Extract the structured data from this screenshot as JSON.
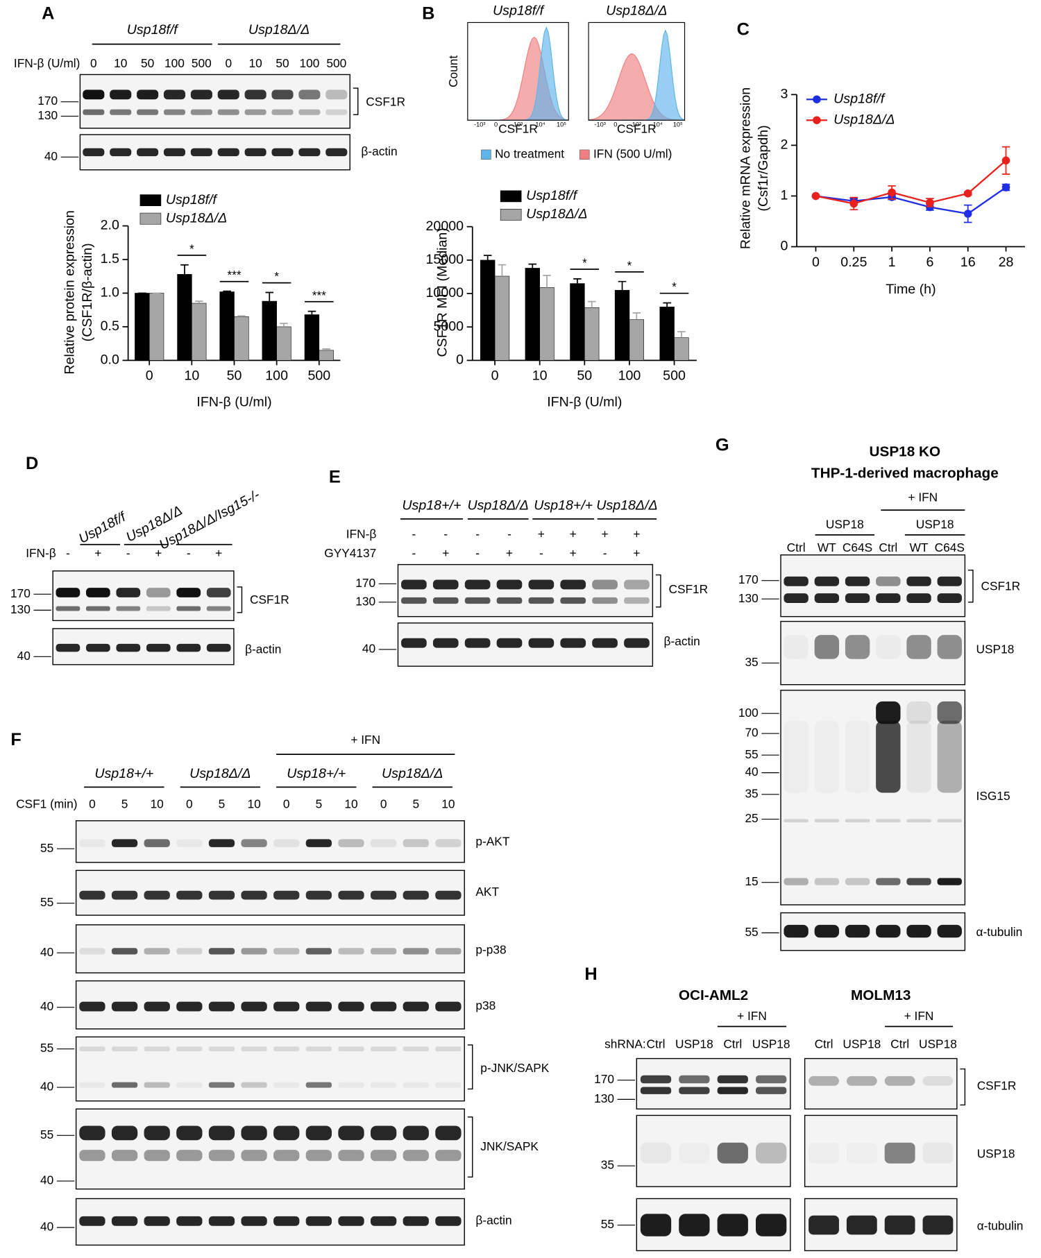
{
  "chart_data": [
    {
      "type": "bar",
      "y_label": [
        "Relative protein expression",
        "(CSF1R/β-actin)"
      ],
      "x_label": "IFN-β (U/ml)",
      "categories": [
        "0",
        "10",
        "50",
        "100",
        "500"
      ],
      "series": [
        {
          "name": "Usp18f/f",
          "color": "#000000",
          "values": [
            1.0,
            1.28,
            1.02,
            0.88,
            0.68
          ],
          "errors": [
            0,
            0.14,
            0.01,
            0.13,
            0.05
          ]
        },
        {
          "name": "Usp18Δ/Δ",
          "color": "#a6a6a6",
          "values": [
            1.0,
            0.85,
            0.65,
            0.5,
            0.15
          ],
          "errors": [
            0,
            0.03,
            0.01,
            0.05,
            0.02
          ]
        }
      ],
      "ylim": [
        0,
        2
      ],
      "yticks": [
        {
          "value": 0,
          "label": "0.0"
        },
        0.5,
        {
          "value": 1,
          "label": "1.0"
        },
        1.5,
        {
          "value": 2,
          "label": "2.0"
        }
      ],
      "annotations": [
        {
          "category": "10",
          "text": "*"
        },
        {
          "category": "50",
          "text": "***"
        },
        {
          "category": "100",
          "text": "*"
        },
        {
          "category": "500",
          "text": "***"
        }
      ]
    },
    {
      "type": "bar",
      "y_label": [
        "CSF1R MFI (Median)"
      ],
      "x_label": "IFN-β (U/ml)",
      "categories": [
        "0",
        "10",
        "50",
        "100",
        "500"
      ],
      "series": [
        {
          "name": "Usp18f/f",
          "color": "#000000",
          "values": [
            15000,
            13800,
            11500,
            10500,
            8000
          ],
          "errors": [
            700,
            600,
            700,
            1300,
            600
          ]
        },
        {
          "name": "Usp18Δ/Δ",
          "color": "#a6a6a6",
          "values": [
            12600,
            10900,
            7900,
            6100,
            3400
          ],
          "errors": [
            1700,
            1800,
            900,
            1000,
            900
          ]
        }
      ],
      "ylim": [
        0,
        20000
      ],
      "yticks": [
        0,
        5000,
        10000,
        15000,
        20000
      ],
      "annotations": [
        {
          "category": "50",
          "text": "*"
        },
        {
          "category": "100",
          "text": "*"
        },
        {
          "category": "500",
          "text": "*"
        }
      ]
    },
    {
      "type": "line",
      "y_label": [
        "Relative mRNA expression",
        "(Csf1r/Gapdh)"
      ],
      "x_label": "Time (h)",
      "categories": [
        "0",
        "0.25",
        "1",
        "6",
        "16",
        "28"
      ],
      "series": [
        {
          "name": "Usp18f/f",
          "color": "#1f2ee0",
          "values": [
            1.0,
            0.9,
            0.98,
            0.78,
            0.65,
            1.17
          ],
          "errors": [
            0,
            0.05,
            0.05,
            0.06,
            0.17,
            0.06
          ]
        },
        {
          "name": "Usp18Δ/Δ",
          "color": "#e8211d",
          "values": [
            1.0,
            0.85,
            1.07,
            0.87,
            1.05,
            1.7
          ],
          "errors": [
            0,
            0.12,
            0.13,
            0.08,
            0.03,
            0.27
          ]
        }
      ],
      "ylim": [
        0,
        3
      ],
      "yticks": [
        0,
        1,
        2,
        3
      ]
    }
  ],
  "panels": {
    "A": {
      "letter": "A",
      "groups": [
        "Usp18f/f",
        "Usp18Δ/Δ"
      ],
      "row_label": "IFN-β (U/ml)",
      "lanes": [
        "0",
        "10",
        "50",
        "100",
        "500",
        "0",
        "10",
        "50",
        "100",
        "500"
      ],
      "blots": [
        {
          "markers": [
            170,
            130
          ],
          "label": "CSF1R"
        },
        {
          "markers": [
            40
          ],
          "label": "β-actin"
        }
      ]
    },
    "B": {
      "letter": "B",
      "histograms": [
        "Usp18f/f",
        "Usp18Δ/Δ"
      ],
      "y_label": "Count",
      "x_label": "CSF1R",
      "x_ticks": [
        "-10³",
        "0",
        "10³",
        "10⁴",
        "10⁵"
      ],
      "legend": [
        {
          "label": "No treatment",
          "color": "#5fb4ea"
        },
        {
          "label": "IFN (500 U/ml)",
          "color": "#f07f7f"
        }
      ]
    },
    "C": {
      "letter": "C"
    },
    "D": {
      "letter": "D",
      "groups": [
        "Usp18f/f",
        "Usp18Δ/Δ",
        "Usp18Δ/Δ/Isg15-/-"
      ],
      "rows": [
        {
          "label": "IFN-β",
          "lanes": [
            "-",
            "+",
            "-",
            "+",
            "-",
            "+"
          ]
        }
      ],
      "blots": [
        {
          "markers": [
            170,
            130
          ],
          "label": "CSF1R"
        },
        {
          "markers": [
            40
          ],
          "label": "β-actin"
        }
      ]
    },
    "E": {
      "letter": "E",
      "groups": [
        "Usp18+/+",
        "Usp18Δ/Δ",
        "Usp18+/+",
        "Usp18Δ/Δ"
      ],
      "rows": [
        {
          "label": "IFN-β",
          "lanes": [
            "-",
            "-",
            "-",
            "-",
            "+",
            "+",
            "+",
            "+"
          ]
        },
        {
          "label": "GYY4137",
          "lanes": [
            "-",
            "+",
            "-",
            "+",
            "-",
            "+",
            "-",
            "+"
          ]
        }
      ],
      "blots": [
        {
          "markers": [
            170,
            130
          ],
          "label": "CSF1R"
        },
        {
          "markers": [
            40
          ],
          "label": "β-actin"
        }
      ]
    },
    "F": {
      "letter": "F",
      "header": "+ IFN",
      "groups": [
        "Usp18+/+",
        "Usp18Δ/Δ",
        "Usp18+/+",
        "Usp18Δ/Δ"
      ],
      "rows": [
        {
          "label": "CSF1 (min)",
          "lanes": [
            "0",
            "5",
            "10",
            "0",
            "5",
            "10",
            "0",
            "5",
            "10",
            "0",
            "5",
            "10"
          ]
        }
      ],
      "blots": [
        {
          "markers": [
            55
          ],
          "label": "p-AKT"
        },
        {
          "markers": [
            55
          ],
          "label": "AKT"
        },
        {
          "markers": [
            40
          ],
          "label": "p-p38"
        },
        {
          "markers": [
            40
          ],
          "label": "p38"
        },
        {
          "markers": [
            55,
            40
          ],
          "label": "p-JNK/SAPK"
        },
        {
          "markers": [
            55,
            40
          ],
          "label": "JNK/SAPK"
        },
        {
          "markers": [
            40
          ],
          "label": "β-actin"
        }
      ]
    },
    "G": {
      "letter": "G",
      "title": [
        "USP18 KO",
        "THP-1-derived macrophage"
      ],
      "header": "+ IFN",
      "subgroups": [
        "USP18",
        "USP18"
      ],
      "lanes": [
        "Ctrl",
        "WT",
        "C64S",
        "Ctrl",
        "WT",
        "C64S"
      ],
      "blots": [
        {
          "markers": [
            170,
            130
          ],
          "label": "CSF1R"
        },
        {
          "markers": [
            35
          ],
          "label": "USP18"
        },
        {
          "markers": [
            100,
            70,
            55,
            40,
            35,
            25,
            15
          ],
          "label": "ISG15"
        },
        {
          "markers": [
            55
          ],
          "label": "α-tubulin"
        }
      ]
    },
    "H": {
      "letter": "H",
      "row_label": "shRNA:",
      "subpanels": [
        {
          "title": "OCI-AML2",
          "header": "+ IFN",
          "lanes": [
            "Ctrl",
            "USP18",
            "Ctrl",
            "USP18"
          ]
        },
        {
          "title": "MOLM13",
          "header": "+ IFN",
          "lanes": [
            "Ctrl",
            "USP18",
            "Ctrl",
            "USP18"
          ]
        }
      ],
      "blots": [
        {
          "markers": [
            170,
            130
          ],
          "label": "CSF1R"
        },
        {
          "markers": [
            35
          ],
          "label": "USP18"
        },
        {
          "markers": [
            55
          ],
          "label": "α-tubulin"
        }
      ]
    }
  }
}
